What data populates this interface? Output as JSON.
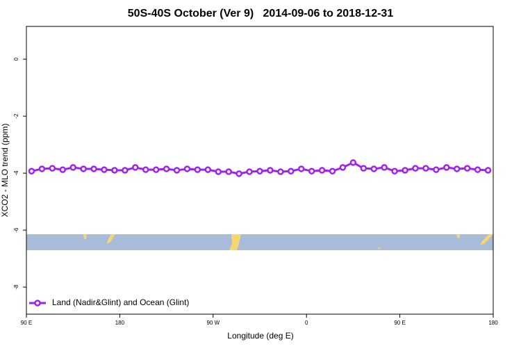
{
  "chart_data": {
    "type": "line",
    "title": "50S-40S October (Ver 9)   2014-09-06 to 2018-12-31",
    "x_label": "Longitude (deg E)",
    "y_label": "XCO2 - MLO trend (ppm)",
    "x": [
      95,
      105,
      115,
      125,
      135,
      145,
      155,
      165,
      175,
      185,
      195,
      205,
      215,
      225,
      235,
      245,
      255,
      265,
      275,
      285,
      295,
      305,
      315,
      325,
      335,
      345,
      355,
      365,
      375,
      385,
      395,
      405,
      415,
      425,
      435,
      445,
      455,
      465,
      475,
      485,
      495,
      505,
      515,
      525,
      535
    ],
    "series": [
      {
        "name": "Land (Nadir&Glint) and Ocean (Glint)",
        "color": "#a020f0",
        "values": [
          -3.93,
          -3.85,
          -3.83,
          -3.88,
          -3.8,
          -3.85,
          -3.85,
          -3.88,
          -3.9,
          -3.9,
          -3.8,
          -3.88,
          -3.88,
          -3.85,
          -3.9,
          -3.85,
          -3.88,
          -3.88,
          -3.95,
          -3.95,
          -4.02,
          -3.95,
          -3.93,
          -3.9,
          -3.95,
          -3.93,
          -3.85,
          -3.93,
          -3.9,
          -3.93,
          -3.8,
          -3.63,
          -3.83,
          -3.85,
          -3.8,
          -3.93,
          -3.9,
          -3.83,
          -3.83,
          -3.88,
          -3.8,
          -3.85,
          -3.83,
          -3.88,
          -3.9
        ]
      }
    ],
    "xlim": [
      90,
      540
    ],
    "xticks": [
      {
        "value": 90,
        "label": "90 E"
      },
      180,
      {
        "value": 270,
        "label": "90 W"
      },
      {
        "value": 360,
        "label": "0"
      },
      {
        "value": 450,
        "label": "90 E"
      },
      {
        "value": 540,
        "label": "180"
      }
    ],
    "ylim": [
      -8.95,
      1.15
    ],
    "yticks": [
      0,
      -2,
      -4,
      -6,
      -8
    ],
    "legend": "bottomleft"
  }
}
